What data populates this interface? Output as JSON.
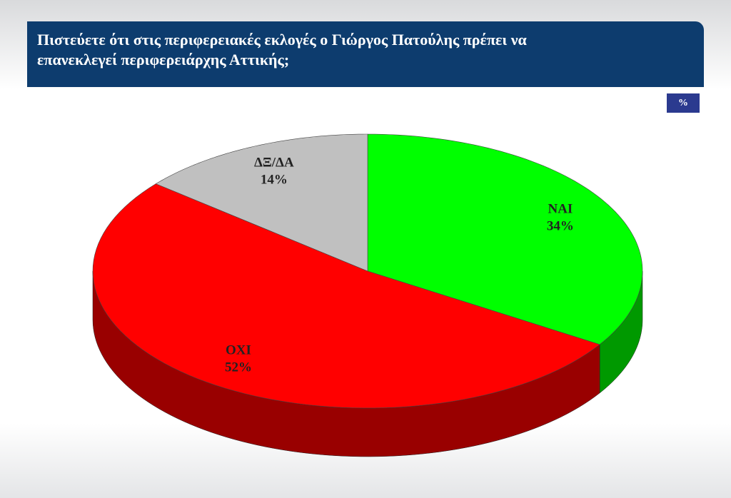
{
  "chart_data": {
    "type": "pie",
    "title": "Πιστεύετε ότι στις περιφερειακές εκλογές ο Γιώργος Πατούλης πρέπει να επανεκλεγεί περιφερειάρχης Αττικής;",
    "unit_label": "%",
    "categories": [
      "ΝΑΙ",
      "ΟΧΙ",
      "ΔΞ/ΔΑ"
    ],
    "values": [
      34,
      52,
      14
    ],
    "value_labels": [
      "34%",
      "52%",
      "14%"
    ],
    "colors": [
      "#00ff00",
      "#ff0000",
      "#c0c0c0"
    ]
  }
}
